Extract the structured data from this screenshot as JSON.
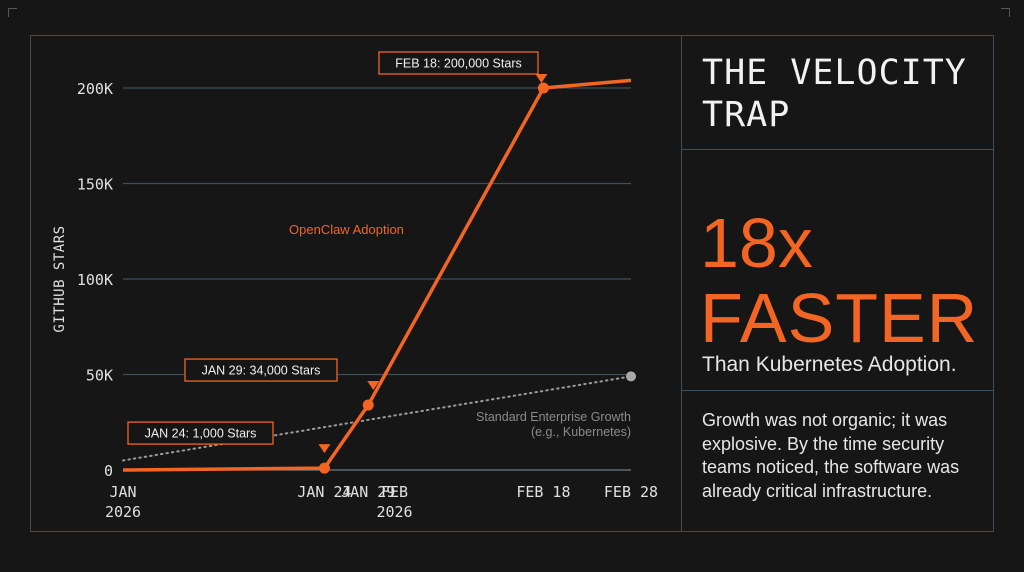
{
  "panel": {
    "title": "THE VELOCITY TRAP",
    "stat_line1": "18x",
    "stat_line2": "FASTER",
    "stat_sub": "Than Kubernetes Adoption.",
    "body": "Growth was not organic; it was explosive. By the time security teams noticed, the software was already critical infrastructure."
  },
  "colors": {
    "accent": "#f26522",
    "baseline": "#9a9a9a",
    "grid": "#3d4f5c",
    "background": "#161616"
  },
  "chart_data": {
    "type": "line",
    "ylabel": "GITHUB STARS",
    "xlabel": "",
    "ylim": [
      0,
      200000
    ],
    "xlim": [
      "2026-01-01",
      "2026-02-28"
    ],
    "grid": true,
    "y_ticks": [
      {
        "value": 0,
        "label": "0"
      },
      {
        "value": 50000,
        "label": "50K"
      },
      {
        "value": 100000,
        "label": "100K"
      },
      {
        "value": 150000,
        "label": "150K"
      },
      {
        "value": 200000,
        "label": "200K"
      }
    ],
    "x_ticks": [
      {
        "date": "2026-01-01",
        "label": [
          "JAN",
          "2026"
        ]
      },
      {
        "date": "2026-01-24",
        "label": [
          "JAN 24"
        ]
      },
      {
        "date": "2026-01-29",
        "label": [
          "JAN 29"
        ]
      },
      {
        "date": "2026-02-01",
        "label": [
          "FEB",
          "2026"
        ]
      },
      {
        "date": "2026-02-18",
        "label": [
          "FEB 18"
        ]
      },
      {
        "date": "2026-02-28",
        "label": [
          "FEB 28"
        ]
      }
    ],
    "series": [
      {
        "name": "OpenClaw Adoption",
        "style": "solid",
        "x": [
          "2026-01-01",
          "2026-01-24",
          "2026-01-29",
          "2026-02-18",
          "2026-02-28"
        ],
        "y": [
          0,
          1000,
          34000,
          200000,
          204000
        ]
      },
      {
        "name": "Standard Enterprise Growth (e.g., Kubernetes)",
        "label_lines": [
          "Standard Enterprise Growth",
          "(e.g., Kubernetes)"
        ],
        "style": "dotted",
        "x": [
          "2026-01-01",
          "2026-02-28"
        ],
        "y": [
          5000,
          49000
        ]
      }
    ],
    "annotations": [
      {
        "date": "2026-01-24",
        "value": 1000,
        "text": "JAN 24: 1,000 Stars"
      },
      {
        "date": "2026-01-29",
        "value": 34000,
        "text": "JAN 29: 34,000 Stars"
      },
      {
        "date": "2026-02-18",
        "value": 200000,
        "text": "FEB 18: 200,000 Stars"
      }
    ]
  }
}
